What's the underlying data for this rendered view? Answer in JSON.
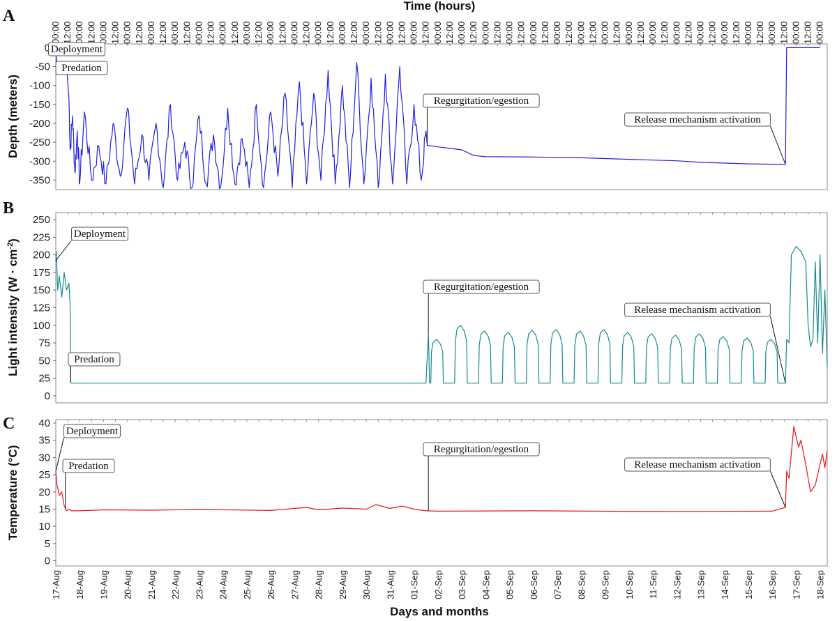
{
  "figure": {
    "top_axis_title": "Time (hours)",
    "bottom_axis_title": "Days and months",
    "top_tick_labels": [
      "00:00",
      "12:00"
    ]
  },
  "chart_data": [
    {
      "panel": "A",
      "type": "line",
      "ylabel": "Depth (meters)",
      "ylim": [
        -375,
        10
      ],
      "yticks": [
        0,
        -50,
        -100,
        -150,
        -200,
        -250,
        -300,
        -350
      ],
      "color": "#1f1fe0",
      "x_unit": "days",
      "xlim": [
        "2017-08-17",
        "2017-09-18"
      ],
      "x_ticks": [
        "17-Aug",
        "18-Aug",
        "19-Aug",
        "20-Aug",
        "21-Aug",
        "22-Aug",
        "23-Aug",
        "24-Aug",
        "25-Aug",
        "26-Aug",
        "27-Aug",
        "28-Aug",
        "29-Aug",
        "30-Aug",
        "31-Aug",
        "01-Sep",
        "02-Sep",
        "03-Sep",
        "04-Sep",
        "05-Sep",
        "06-Sep",
        "07-Sep",
        "08-Sep",
        "09-Sep",
        "10-Sep",
        "11-Sep",
        "12-Sep",
        "13-Sep",
        "14-Sep",
        "15-Sep",
        "16-Sep",
        "17-Sep",
        "18-Sep"
      ],
      "series": [
        {
          "x": [
            0.0,
            0.05,
            0.1,
            0.25,
            0.45,
            0.55,
            0.6,
            0.7,
            0.8,
            0.9,
            1.0,
            1.2,
            1.5,
            1.8,
            2.1,
            2.4,
            2.7,
            3.0,
            3.3,
            3.6,
            3.9,
            4.2,
            4.5,
            4.8,
            5.1,
            5.4,
            5.7,
            6.0,
            6.3,
            6.6,
            6.9,
            7.2,
            7.5,
            7.8,
            8.1,
            8.4,
            8.7,
            9.0,
            9.3,
            9.6,
            9.9,
            10.2,
            10.5,
            10.8,
            11.1,
            11.4,
            11.7,
            12.0,
            12.3,
            12.6,
            12.9,
            13.2,
            13.5,
            13.8,
            14.1,
            14.4,
            14.7,
            15.0,
            15.3,
            15.5,
            15.55,
            16.0,
            17.0,
            17.5,
            18.0,
            20.0,
            22.0,
            23.0,
            24.0,
            25.0,
            26.0,
            27.0,
            28.0,
            29.0,
            30.0,
            30.55,
            30.6,
            31.0,
            32.0
          ],
          "y": [
            0,
            -50,
            -50,
            -48,
            -50,
            -130,
            -270,
            -180,
            -330,
            -220,
            -360,
            -170,
            -350,
            -260,
            -360,
            -200,
            -340,
            -160,
            -360,
            -230,
            -350,
            -200,
            -370,
            -150,
            -350,
            -250,
            -370,
            -180,
            -360,
            -230,
            -370,
            -160,
            -360,
            -240,
            -370,
            -150,
            -370,
            -170,
            -340,
            -120,
            -370,
            -90,
            -360,
            -120,
            -350,
            -60,
            -360,
            -100,
            -370,
            -40,
            -360,
            -80,
            -370,
            -70,
            -360,
            -50,
            -360,
            -150,
            -350,
            -220,
            -258,
            -262,
            -270,
            -285,
            -288,
            -289,
            -291,
            -293,
            -295,
            -297,
            -299,
            -303,
            -305,
            -307,
            -308,
            -308,
            0,
            0,
            0
          ]
        }
      ],
      "annotations": [
        {
          "label": "Deployment",
          "x": 0.0,
          "y": 0
        },
        {
          "label": "Predation",
          "x": 0.3,
          "y": -50
        },
        {
          "label": "Regurgitation/egestion",
          "x": 15.55,
          "y": -258
        },
        {
          "label": "Release mechanism activation",
          "x": 30.55,
          "y": -308
        }
      ]
    },
    {
      "panel": "B",
      "type": "line",
      "ylabel": "Light intensity (W · cm",
      "ylabel_sup": "-2",
      "ylabel_end": ")",
      "ylim": [
        -10,
        260
      ],
      "yticks": [
        0,
        25,
        50,
        75,
        100,
        125,
        150,
        175,
        200,
        225,
        250
      ],
      "color": "#148a8f",
      "series": [
        {
          "x": [
            0.0,
            0.02,
            0.08,
            0.15,
            0.25,
            0.35,
            0.45,
            0.55,
            0.6,
            0.62,
            0.65,
            2.0,
            6.0,
            10.0,
            14.0,
            15.5,
            15.6,
            15.62,
            15.65
          ],
          "y": [
            190,
            205,
            150,
            170,
            140,
            175,
            150,
            160,
            130,
            20,
            18,
            18,
            18,
            18,
            18,
            18,
            89,
            60,
            18
          ]
        }
      ],
      "day_cycles": {
        "start": 16,
        "end": 30,
        "peak": [
          80,
          100,
          92,
          90,
          93,
          94,
          92,
          94,
          90,
          88,
          86,
          88,
          84,
          82,
          80
        ],
        "night": 18
      },
      "tail": {
        "x": [
          30.55,
          30.6,
          30.7,
          30.8,
          31.0,
          31.2,
          31.4,
          31.5,
          31.6,
          31.7,
          31.8,
          31.9,
          32.0,
          32.1,
          32.2,
          32.3
        ],
        "y": [
          18,
          80,
          75,
          200,
          212,
          205,
          190,
          100,
          70,
          80,
          190,
          75,
          200,
          60,
          150,
          40
        ]
      },
      "annotations": [
        {
          "label": "Deployment",
          "x": 0.0,
          "y": 192
        },
        {
          "label": "Predation",
          "x": 0.62,
          "y": 19
        },
        {
          "label": "Regurgitation/egestion",
          "x": 15.6,
          "y": 89
        },
        {
          "label": "Release mechanism activation",
          "x": 30.55,
          "y": 18
        }
      ]
    },
    {
      "panel": "C",
      "type": "line",
      "ylabel": "Temperature (°C)",
      "ylim": [
        -1.5,
        41
      ],
      "yticks": [
        0,
        5,
        10,
        15,
        20,
        25,
        30,
        35,
        40
      ],
      "color": "#ee1111",
      "series": [
        {
          "x": [
            0.0,
            0.05,
            0.15,
            0.25,
            0.35,
            0.45,
            0.55,
            0.65,
            1.0,
            2.0,
            4.0,
            6.0,
            9.0,
            10.5,
            11.0,
            12.0,
            13.0,
            13.4,
            14.0,
            14.5,
            15.0,
            15.5,
            16.0,
            20.0,
            25.0,
            30.0,
            30.55
          ],
          "y": [
            26,
            22,
            19,
            20,
            16,
            14.5,
            15,
            14.5,
            14.5,
            14.8,
            14.7,
            14.9,
            14.6,
            15.5,
            14.8,
            15.3,
            15.0,
            16.3,
            15.2,
            15.9,
            15.0,
            14.5,
            14.4,
            14.5,
            14.3,
            14.4,
            15.5
          ]
        }
      ],
      "tail": {
        "x": [
          30.55,
          30.6,
          30.7,
          30.9,
          31.1,
          31.2,
          31.4,
          31.6,
          31.8,
          32.0,
          32.1,
          32.2,
          32.3
        ],
        "y": [
          15.5,
          26,
          24,
          39,
          33,
          35,
          28,
          20,
          22,
          28,
          31,
          27,
          32
        ]
      },
      "annotations": [
        {
          "label": "Deployment",
          "x": 0.0,
          "y": 26
        },
        {
          "label": "Predation",
          "x": 0.4,
          "y": 15
        },
        {
          "label": "Regurgitation/egestion",
          "x": 15.6,
          "y": 14.5
        },
        {
          "label": "Release mechanism activation",
          "x": 30.55,
          "y": 15.5
        }
      ]
    }
  ]
}
